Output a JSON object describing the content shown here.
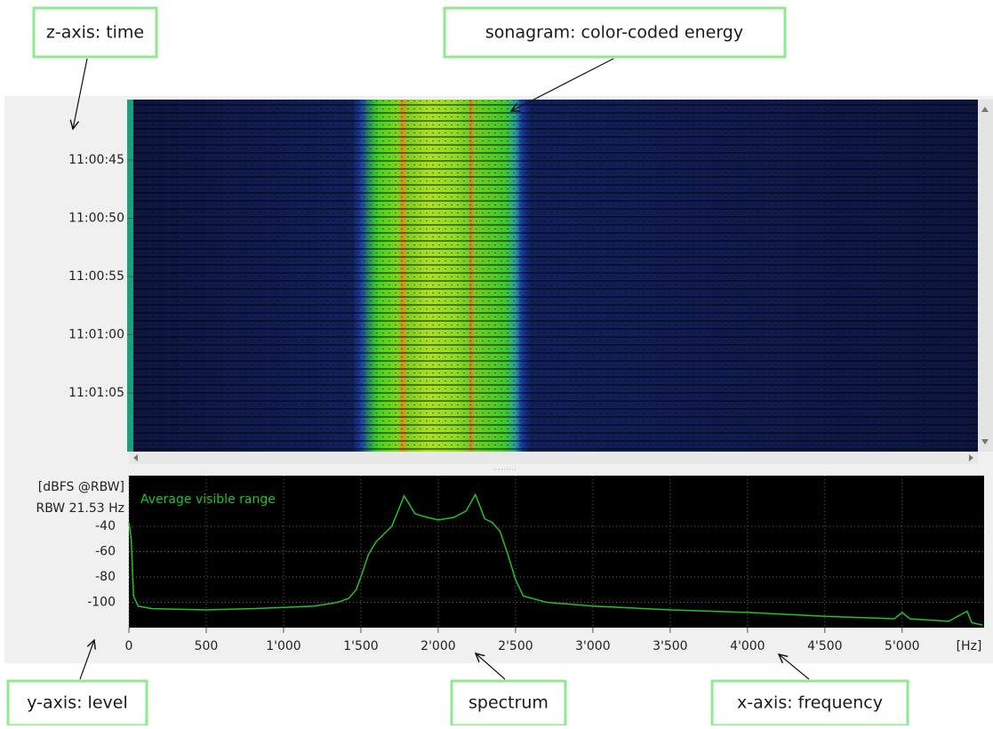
{
  "annotations": [
    "z-axis: time",
    "sonagram: color-coded energy",
    "y-axis: level",
    "spectrum",
    "x-axis: frequency"
  ],
  "sonagram": {
    "time_labels": [
      "11:00:45",
      "11:00:50",
      "11:00:55",
      "11:01:00",
      "11:01:05"
    ]
  },
  "chart_data": {
    "type": "line",
    "ylabel": [
      "[dBFS @RBW]",
      "RBW 21.53 Hz"
    ],
    "xlabel": "[Hz]",
    "x": [
      0,
      15,
      30,
      60,
      150,
      500,
      800,
      1000,
      1200,
      1350,
      1420,
      1470,
      1500,
      1550,
      1600,
      1650,
      1700,
      1740,
      1780,
      1810,
      1850,
      1900,
      2000,
      2100,
      2180,
      2240,
      2270,
      2300,
      2350,
      2400,
      2450,
      2500,
      2550,
      2700,
      3000,
      3500,
      4000,
      4500,
      4950,
      5000,
      5050,
      5300,
      5420,
      5450,
      5520
    ],
    "series": [
      {
        "name": "Average visible range",
        "color": "#22c422",
        "values": [
          -37,
          -50,
          -95,
          -103,
          -105,
          -106,
          -105,
          -104,
          -103,
          -100,
          -97,
          -90,
          -80,
          -62,
          -52,
          -46,
          -40,
          -28,
          -16,
          -22,
          -30,
          -32,
          -35,
          -33,
          -28,
          -15,
          -24,
          -34,
          -37,
          -44,
          -62,
          -82,
          -95,
          -100,
          -103,
          -106,
          -108,
          -111,
          -113,
          -108,
          -113,
          -115,
          -107,
          -116,
          -118
        ]
      }
    ],
    "xlim": [
      0,
      5530
    ],
    "ylim": [
      -120,
      0
    ],
    "xticks": [
      0,
      500,
      {
        "value": 1000,
        "label": "1'000"
      },
      {
        "value": 1500,
        "label": "1'500"
      },
      {
        "value": 2000,
        "label": "2'000"
      },
      {
        "value": 2500,
        "label": "2'500"
      },
      {
        "value": 3000,
        "label": "3'000"
      },
      {
        "value": 3500,
        "label": "3'500"
      },
      {
        "value": 4000,
        "label": "4'000"
      },
      {
        "value": 4500,
        "label": "4'500"
      },
      {
        "value": 5000,
        "label": "5'000"
      }
    ],
    "yticks": [
      -40,
      -60,
      -80,
      -100
    ],
    "grid": true
  }
}
